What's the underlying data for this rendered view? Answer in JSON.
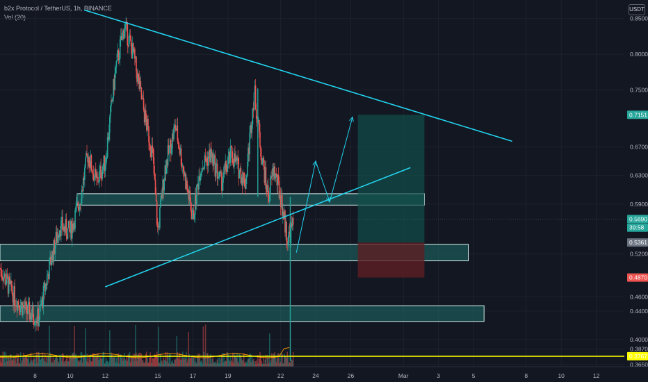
{
  "header": {
    "symbol_line": "b2x Protocol / TetherUS, 1h, BINANCE",
    "volume_label": "Vol (20)",
    "currency_button": "USDT"
  },
  "colors": {
    "background": "#131722",
    "up": "#26a69a",
    "down": "#ef5350",
    "trendline": "#22d3ee",
    "zone_fill": "#1f6f6a",
    "zone_border": "#d9f2f0",
    "target_fill": "#134e4a",
    "stop_fill": "#5c1f24",
    "highlight_line": "#ffff00",
    "grid": "#1e222d"
  },
  "price_tags": [
    {
      "label": "0.7151",
      "value": 0.7151,
      "color": "#26a69a"
    },
    {
      "label": "0.5690",
      "value": 0.569,
      "color": "#26a69a"
    },
    {
      "label": "39:58",
      "value": 0.557,
      "color": "#26a69a"
    },
    {
      "label": "0.5361",
      "value": 0.5361,
      "color": "#6b7280"
    },
    {
      "label": "0.4870",
      "value": 0.487,
      "color": "#ef5350"
    },
    {
      "label": "0.3767",
      "value": 0.3767,
      "color": "#ffff00"
    }
  ],
  "chart_data": {
    "type": "candlestick",
    "y_axis": {
      "ticks": [
        "0.8500",
        "0.8000",
        "0.7500",
        "0.6700",
        "0.6300",
        "0.5900",
        "0.5200",
        "0.4600",
        "0.4400",
        "0.4000",
        "0.3870",
        "0.3650"
      ],
      "tick_values": [
        0.85,
        0.8,
        0.75,
        0.67,
        0.63,
        0.59,
        0.52,
        0.46,
        0.44,
        0.4,
        0.387,
        0.365
      ],
      "range": [
        0.362,
        0.876
      ]
    },
    "x_axis": {
      "ticks": [
        "8",
        "10",
        "12",
        "15",
        "17",
        "19",
        "22",
        "24",
        "26",
        "Mar",
        "3",
        "5",
        "8",
        "10",
        "12"
      ],
      "tick_days": [
        8,
        10,
        12,
        15,
        17,
        19,
        22,
        24,
        26,
        29,
        31,
        33,
        36,
        38,
        40
      ],
      "range_days": [
        6.0,
        41.6
      ]
    },
    "price_path": [
      [
        6.0,
        0.5
      ],
      [
        6.8,
        0.46
      ],
      [
        7.5,
        0.44
      ],
      [
        8.2,
        0.43
      ],
      [
        8.8,
        0.5
      ],
      [
        9.4,
        0.56
      ],
      [
        10.0,
        0.55
      ],
      [
        10.6,
        0.6
      ],
      [
        11.0,
        0.66
      ],
      [
        11.5,
        0.62
      ],
      [
        12.0,
        0.65
      ],
      [
        12.6,
        0.78
      ],
      [
        13.1,
        0.84
      ],
      [
        13.6,
        0.8
      ],
      [
        14.2,
        0.72
      ],
      [
        14.7,
        0.66
      ],
      [
        15.0,
        0.55
      ],
      [
        15.4,
        0.64
      ],
      [
        16.0,
        0.7
      ],
      [
        16.6,
        0.62
      ],
      [
        17.0,
        0.57
      ],
      [
        17.4,
        0.64
      ],
      [
        18.0,
        0.66
      ],
      [
        18.6,
        0.62
      ],
      [
        19.2,
        0.66
      ],
      [
        19.6,
        0.64
      ],
      [
        20.0,
        0.62
      ],
      [
        20.5,
        0.75
      ],
      [
        20.9,
        0.66
      ],
      [
        21.3,
        0.6
      ],
      [
        21.6,
        0.64
      ],
      [
        22.0,
        0.6
      ],
      [
        22.4,
        0.54
      ],
      [
        22.7,
        0.56
      ]
    ],
    "volume_range": [
      0,
      1
    ]
  }
}
